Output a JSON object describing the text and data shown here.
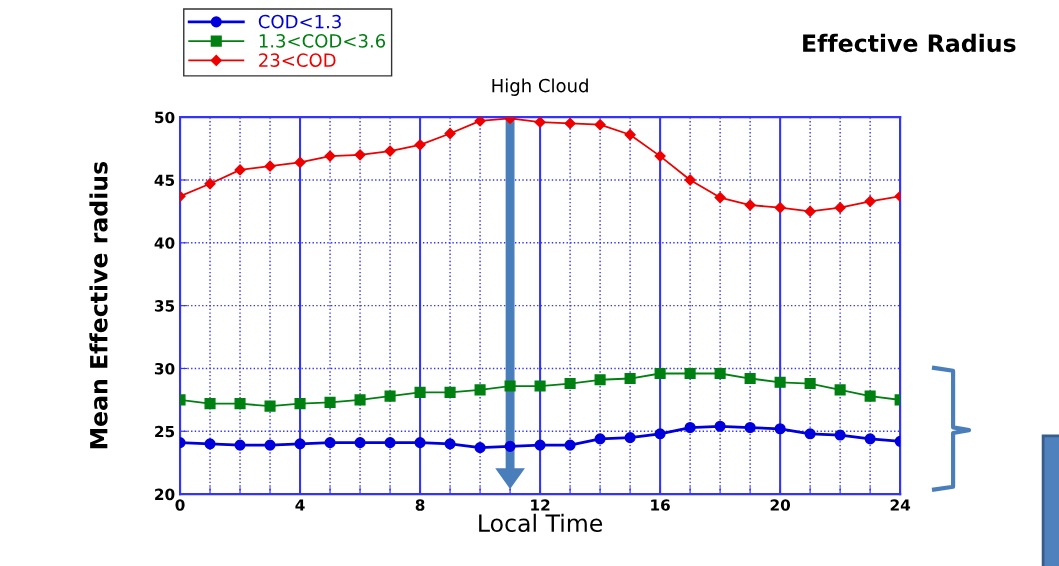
{
  "chart_data": {
    "type": "line",
    "title": "Effective Radius",
    "subtitle": "High Cloud",
    "xlabel": "Local Time",
    "ylabel": "Mean Effective radius",
    "x": [
      0,
      1,
      2,
      3,
      4,
      5,
      6,
      7,
      8,
      9,
      10,
      11,
      12,
      13,
      14,
      15,
      16,
      17,
      18,
      19,
      20,
      21,
      22,
      23,
      24
    ],
    "series": [
      {
        "name": "COD<1.3",
        "color": "#0000dd",
        "marker": "circle",
        "values": [
          24.1,
          24.0,
          23.9,
          23.9,
          24.0,
          24.1,
          24.1,
          24.1,
          24.1,
          24.0,
          23.7,
          23.8,
          23.9,
          23.9,
          24.4,
          24.5,
          24.8,
          25.3,
          25.4,
          25.3,
          25.2,
          24.8,
          24.7,
          24.4,
          24.2
        ]
      },
      {
        "name": "1.3<COD<3.6",
        "color": "#008010",
        "marker": "square",
        "values": [
          27.5,
          27.2,
          27.2,
          27.0,
          27.2,
          27.3,
          27.5,
          27.8,
          28.1,
          28.1,
          28.3,
          28.6,
          28.6,
          28.8,
          29.1,
          29.2,
          29.6,
          29.6,
          29.6,
          29.2,
          28.9,
          28.8,
          28.3,
          27.8,
          27.5
        ]
      },
      {
        "name": "23<COD",
        "color": "#ee0000",
        "marker": "diamond",
        "values": [
          43.7,
          44.7,
          45.8,
          46.1,
          46.4,
          46.9,
          47.0,
          47.3,
          47.8,
          48.7,
          49.7,
          49.9,
          49.6,
          49.5,
          49.4,
          48.6,
          46.9,
          45.0,
          43.6,
          43.0,
          42.8,
          42.5,
          42.8,
          43.3,
          43.7
        ]
      }
    ],
    "xlim": [
      0,
      24
    ],
    "xticks": [
      0,
      {
        "value": 1,
        "label": null
      },
      {
        "value": 2,
        "label": null
      },
      {
        "value": 3,
        "label": null
      },
      4,
      {
        "value": 5,
        "label": null
      },
      {
        "value": 6,
        "label": null
      },
      {
        "value": 7,
        "label": null
      },
      8,
      {
        "value": 9,
        "label": null
      },
      {
        "value": 10,
        "label": null
      },
      {
        "value": 11,
        "label": null
      },
      12,
      {
        "value": 13,
        "label": null
      },
      {
        "value": 14,
        "label": null
      },
      {
        "value": 15,
        "label": null
      },
      16,
      {
        "value": 17,
        "label": null
      },
      {
        "value": 18,
        "label": null
      },
      {
        "value": 19,
        "label": null
      },
      20,
      {
        "value": 21,
        "label": null
      },
      {
        "value": 22,
        "label": null
      },
      {
        "value": 23,
        "label": null
      },
      24
    ],
    "ylim": [
      20,
      50
    ],
    "yticks": [
      20,
      25,
      30,
      35,
      40,
      45,
      50
    ],
    "grid": true,
    "legend": "top left",
    "line_style": "solid"
  }
}
